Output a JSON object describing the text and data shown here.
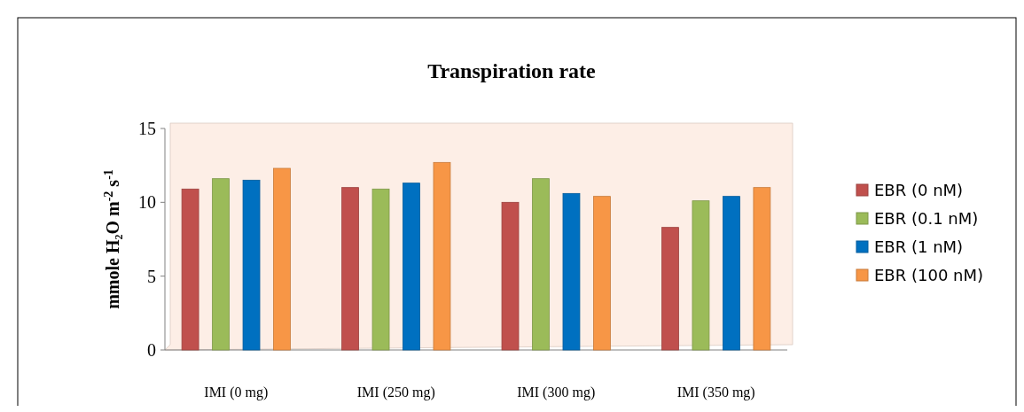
{
  "chart_data": {
    "type": "bar",
    "title": "Transpiration rate",
    "ylabel": "mmole H₂O m$^{-2}$ s$^{-1}$",
    "categories": [
      "IMI (0 mg)",
      "IMI (250 mg)",
      "IMI (300 mg)",
      "IMI (350 mg)"
    ],
    "series": [
      {
        "name": "EBR (0 nM)",
        "color": "#c0504d",
        "values": [
          10.9,
          11.0,
          10.0,
          8.3
        ]
      },
      {
        "name": "EBR (0.1 nM)",
        "color": "#9bbb59",
        "values": [
          11.6,
          10.9,
          11.6,
          10.1
        ]
      },
      {
        "name": "EBR (1 nM)",
        "color": "#0070c0",
        "values": [
          11.5,
          11.3,
          10.6,
          10.4
        ]
      },
      {
        "name": "EBR (100 nM)",
        "color": "#f79646",
        "values": [
          12.3,
          12.7,
          10.4,
          11.0
        ]
      }
    ],
    "ylim": [
      0,
      15
    ],
    "yticks": [
      0,
      5,
      10,
      15
    ],
    "grid": false,
    "legend": "right"
  }
}
